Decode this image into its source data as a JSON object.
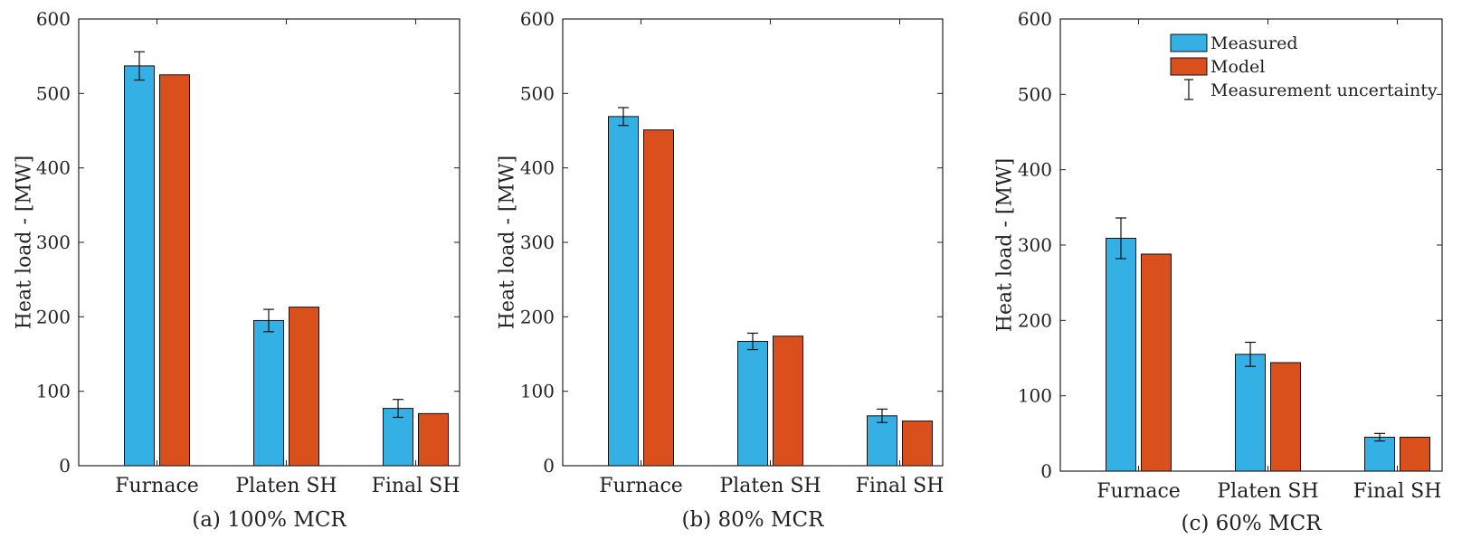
{
  "colors": {
    "measured": "#35B0E4",
    "model": "#D9501D",
    "axis": "#222222"
  },
  "legend": {
    "items": [
      {
        "label": "Measured",
        "marker": "bar",
        "color_key": "measured"
      },
      {
        "label": "Model",
        "marker": "bar",
        "color_key": "model"
      },
      {
        "label": "Measurement uncertainty",
        "marker": "errorbar"
      }
    ],
    "placement": "top-right of panel (c)"
  },
  "chart_data": [
    {
      "type": "bar",
      "caption": "(a) 100% MCR",
      "ylabel": "Heat load - [MW]",
      "ylim": [
        0,
        600
      ],
      "yticks": [
        "0",
        "100",
        "200",
        "300",
        "400",
        "500",
        "600"
      ],
      "categories": [
        "Furnace",
        "Platen SH",
        "Final SH"
      ],
      "series": [
        {
          "name": "Measured",
          "values": [
            537,
            195,
            77
          ],
          "uncertainty": [
            19,
            15,
            12
          ]
        },
        {
          "name": "Model",
          "values": [
            525,
            213,
            70
          ]
        }
      ],
      "grid": false
    },
    {
      "type": "bar",
      "caption": "(b) 80% MCR",
      "ylabel": "Heat load - [MW]",
      "ylim": [
        0,
        600
      ],
      "yticks": [
        "0",
        "100",
        "200",
        "300",
        "400",
        "500",
        "600"
      ],
      "categories": [
        "Furnace",
        "Platen SH",
        "Final SH"
      ],
      "series": [
        {
          "name": "Measured",
          "values": [
            469,
            167,
            67
          ],
          "uncertainty": [
            12,
            11,
            9
          ]
        },
        {
          "name": "Model",
          "values": [
            451,
            174,
            60
          ]
        }
      ],
      "grid": false
    },
    {
      "type": "bar",
      "caption": "(c) 60% MCR",
      "ylabel": "Heat load - [MW]",
      "ylim": [
        0,
        600
      ],
      "yticks": [
        "0",
        "100",
        "200",
        "300",
        "400",
        "500",
        "600"
      ],
      "categories": [
        "Furnace",
        "Platen SH",
        "Final SH"
      ],
      "series": [
        {
          "name": "Measured",
          "values": [
            309,
            155,
            45
          ],
          "uncertainty": [
            27,
            16,
            5
          ]
        },
        {
          "name": "Model",
          "values": [
            288,
            144,
            45
          ]
        }
      ],
      "grid": false
    }
  ]
}
